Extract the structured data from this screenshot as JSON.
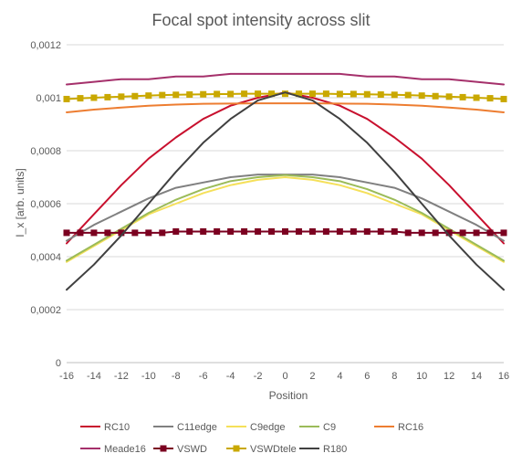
{
  "chart_data": {
    "type": "line",
    "title": "Focal spot intensity across slit",
    "xlabel": "Position",
    "ylabel": "I_x [arb. units]",
    "xlim": [
      -16,
      16
    ],
    "ylim": [
      0,
      0.0012
    ],
    "x_ticks": [
      "-16",
      "-14",
      "-12",
      "-10",
      "-8",
      "-6",
      "-4",
      "-2",
      "0",
      "2",
      "4",
      "6",
      "8",
      "10",
      "12",
      "14",
      "16"
    ],
    "y_ticks": [
      "0",
      "0,0002",
      "0,0004",
      "0,0006",
      "0,0008",
      "0,001",
      "0,0012"
    ],
    "grid": "horizontal",
    "legend_position": "bottom",
    "series": [
      {
        "name": "RC10",
        "color": "#C8102E",
        "marker": "none",
        "x": [
          -16,
          -14,
          -12,
          -10,
          -8,
          -6,
          -4,
          -2,
          0,
          2,
          4,
          6,
          8,
          10,
          12,
          14,
          16
        ],
        "values": [
          0.00045,
          0.00056,
          0.00067,
          0.00077,
          0.00085,
          0.00092,
          0.00097,
          0.001,
          0.00102,
          0.001,
          0.00097,
          0.00092,
          0.00085,
          0.00077,
          0.00067,
          0.00056,
          0.00045
        ]
      },
      {
        "name": "C11edge",
        "color": "#808080",
        "marker": "none",
        "x": [
          -16,
          -14,
          -12,
          -10,
          -8,
          -6,
          -4,
          -2,
          0,
          2,
          4,
          6,
          8,
          10,
          12,
          14,
          16
        ],
        "values": [
          0.00046,
          0.00052,
          0.00057,
          0.00062,
          0.00066,
          0.00068,
          0.0007,
          0.00071,
          0.00071,
          0.00071,
          0.0007,
          0.00068,
          0.00066,
          0.00062,
          0.00057,
          0.00052,
          0.00046
        ]
      },
      {
        "name": "C9edge",
        "color": "#F5E05A",
        "marker": "none",
        "x": [
          -16,
          -14,
          -12,
          -10,
          -8,
          -6,
          -4,
          -2,
          0,
          2,
          4,
          6,
          8,
          10,
          12,
          14,
          16
        ],
        "values": [
          0.00038,
          0.00044,
          0.0005,
          0.00056,
          0.0006,
          0.00064,
          0.00067,
          0.00069,
          0.0007,
          0.00069,
          0.00067,
          0.00064,
          0.0006,
          0.00056,
          0.0005,
          0.00044,
          0.00038
        ]
      },
      {
        "name": "C9",
        "color": "#9BBB59",
        "marker": "none",
        "x": [
          -16,
          -14,
          -12,
          -10,
          -8,
          -6,
          -4,
          -2,
          0,
          2,
          4,
          6,
          8,
          10,
          12,
          14,
          16
        ],
        "values": [
          0.000385,
          0.000445,
          0.000505,
          0.000565,
          0.000615,
          0.000655,
          0.000685,
          0.0007,
          0.000708,
          0.0007,
          0.000685,
          0.000655,
          0.000615,
          0.000565,
          0.000505,
          0.000445,
          0.000385
        ]
      },
      {
        "name": "RC16",
        "color": "#ED7D31",
        "marker": "none",
        "x": [
          -16,
          -14,
          -12,
          -10,
          -8,
          -6,
          -4,
          -2,
          0,
          2,
          4,
          6,
          8,
          10,
          12,
          14,
          16
        ],
        "values": [
          0.000945,
          0.000955,
          0.000963,
          0.00097,
          0.000974,
          0.000977,
          0.000978,
          0.000979,
          0.000979,
          0.000979,
          0.000978,
          0.000977,
          0.000974,
          0.00097,
          0.000963,
          0.000955,
          0.000945
        ]
      },
      {
        "name": "Meade16",
        "color": "#A5306B",
        "marker": "none",
        "x": [
          -16,
          -14,
          -12,
          -10,
          -8,
          -6,
          -4,
          -2,
          0,
          2,
          4,
          6,
          8,
          10,
          12,
          14,
          16
        ],
        "values": [
          0.00105,
          0.00106,
          0.00107,
          0.00107,
          0.00108,
          0.00108,
          0.00109,
          0.00109,
          0.00109,
          0.00109,
          0.00109,
          0.00108,
          0.00108,
          0.00107,
          0.00107,
          0.00106,
          0.00105
        ]
      },
      {
        "name": "VSWD",
        "color": "#7B0020",
        "marker": "square",
        "x": [
          -16,
          -15,
          -14,
          -13,
          -12,
          -11,
          -10,
          -9,
          -8,
          -7,
          -6,
          -5,
          -4,
          -3,
          -2,
          -1,
          0,
          1,
          2,
          3,
          4,
          5,
          6,
          7,
          8,
          9,
          10,
          11,
          12,
          13,
          14,
          15,
          16
        ],
        "values": [
          0.00049,
          0.00049,
          0.00049,
          0.00049,
          0.00049,
          0.00049,
          0.00049,
          0.00049,
          0.000495,
          0.000495,
          0.000495,
          0.000495,
          0.000495,
          0.000495,
          0.000495,
          0.000495,
          0.000495,
          0.000495,
          0.000495,
          0.000495,
          0.000495,
          0.000495,
          0.000495,
          0.000495,
          0.000495,
          0.00049,
          0.00049,
          0.00049,
          0.00049,
          0.00049,
          0.00049,
          0.00049,
          0.00049
        ]
      },
      {
        "name": "VSWDtele",
        "color": "#C9A800",
        "marker": "square",
        "x": [
          -16,
          -15,
          -14,
          -13,
          -12,
          -11,
          -10,
          -9,
          -8,
          -7,
          -6,
          -5,
          -4,
          -3,
          -2,
          -1,
          0,
          1,
          2,
          3,
          4,
          5,
          6,
          7,
          8,
          9,
          10,
          11,
          12,
          13,
          14,
          15,
          16
        ],
        "values": [
          0.000995,
          0.000998,
          0.001,
          0.001002,
          0.001004,
          0.001006,
          0.001008,
          0.00101,
          0.001011,
          0.001012,
          0.001013,
          0.001014,
          0.001014,
          0.001015,
          0.001015,
          0.001015,
          0.001015,
          0.001015,
          0.001015,
          0.001015,
          0.001014,
          0.001014,
          0.001013,
          0.001012,
          0.001011,
          0.00101,
          0.001008,
          0.001006,
          0.001004,
          0.001002,
          0.001,
          0.000998,
          0.000995
        ]
      },
      {
        "name": "R180",
        "color": "#404040",
        "marker": "none",
        "x": [
          -16,
          -14,
          -12,
          -10,
          -8,
          -6,
          -4,
          -2,
          0,
          2,
          4,
          6,
          8,
          10,
          12,
          14,
          16
        ],
        "values": [
          0.000275,
          0.00037,
          0.00048,
          0.0006,
          0.00072,
          0.00083,
          0.00092,
          0.00099,
          0.00102,
          0.00099,
          0.00092,
          0.00083,
          0.00072,
          0.0006,
          0.00048,
          0.00037,
          0.000275
        ]
      }
    ]
  }
}
